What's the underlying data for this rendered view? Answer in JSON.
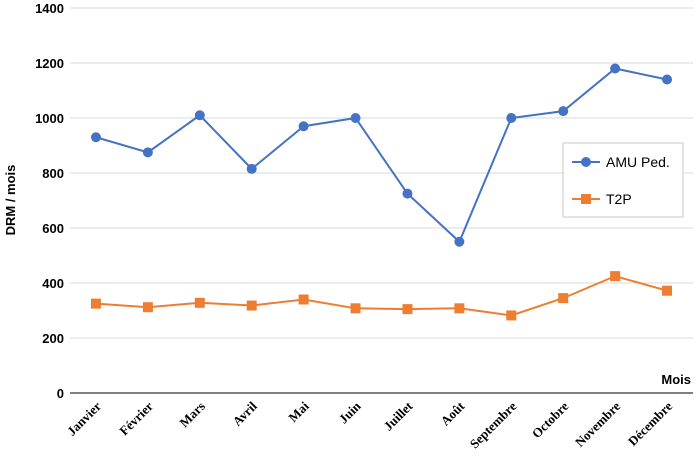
{
  "chart_data": {
    "type": "line",
    "categories": [
      "Janvier",
      "Février",
      "Mars",
      "Avril",
      "Mai",
      "Juin",
      "Juillet",
      "Août",
      "Septembre",
      "Octobre",
      "Novembre",
      "Décembre"
    ],
    "series": [
      {
        "name": "AMU Ped.",
        "color": "#4472C4",
        "marker": "circle",
        "values": [
          930,
          875,
          1010,
          815,
          970,
          1000,
          725,
          550,
          1000,
          1025,
          1180,
          1140
        ]
      },
      {
        "name": "T2P",
        "color": "#ED7D31",
        "marker": "square",
        "values": [
          325,
          312,
          328,
          318,
          340,
          308,
          305,
          308,
          282,
          345,
          425,
          372
        ]
      }
    ],
    "title": "",
    "xlabel": "Mois",
    "ylabel": "DRM / mois",
    "ylim": [
      0,
      1400
    ],
    "yticks": [
      0,
      200,
      400,
      600,
      800,
      1000,
      1200,
      1400
    ],
    "grid": true,
    "legend_position": "right"
  }
}
